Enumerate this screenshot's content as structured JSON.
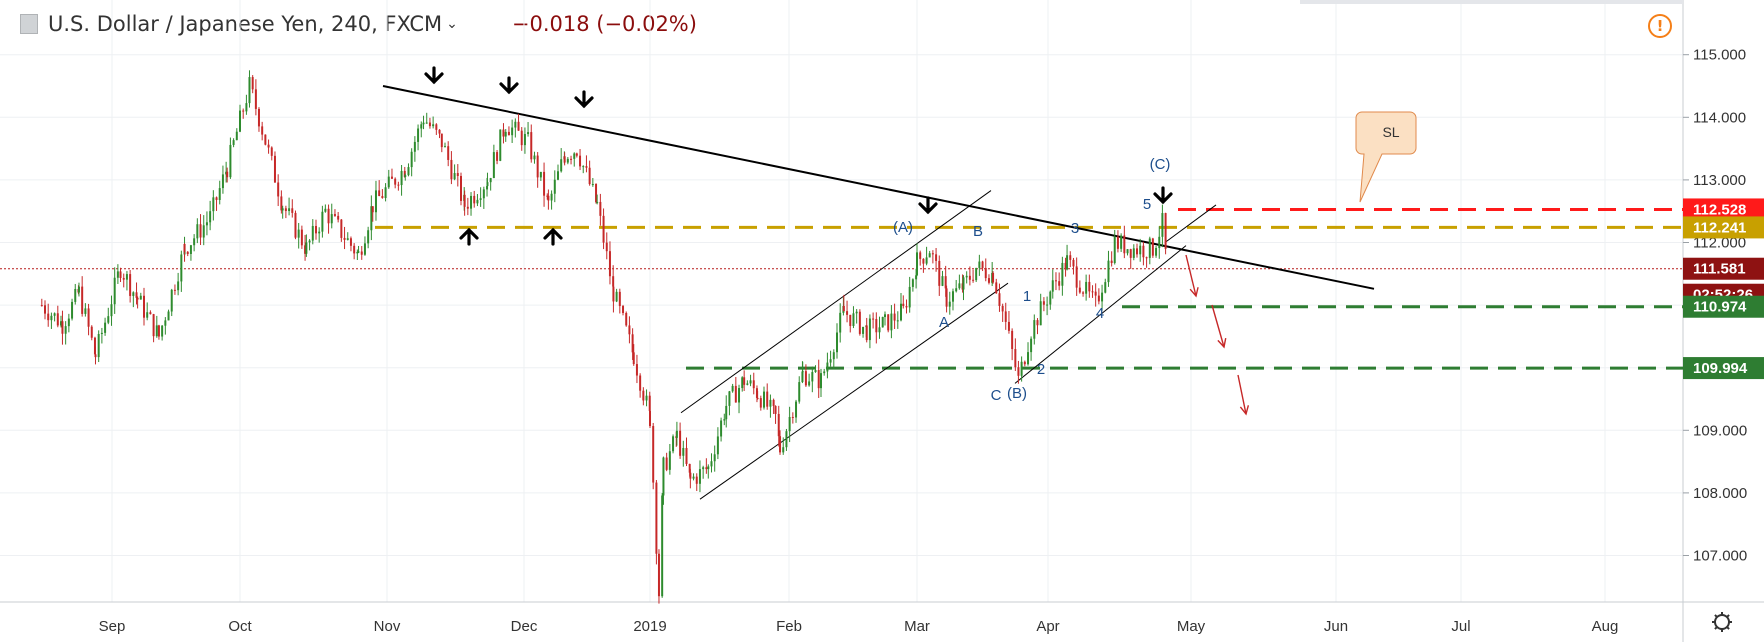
{
  "header": {
    "title": "U.S. Dollar / Japanese Yen, 240, FXCM",
    "change": "−0.018 (−0.02%)"
  },
  "icons": {
    "symbol": "symbol-icon",
    "dropdown": "chevron-down-icon",
    "alert": "warning-icon",
    "settings": "gear-icon"
  },
  "colors": {
    "up": "#2e8b2e",
    "down": "#c62828",
    "trend": "#000000",
    "resistance": "#c8a000",
    "stop": "#ff1a1a",
    "target": "#2e7d32"
  },
  "chart_data": {
    "type": "candlestick",
    "title": "U.S. Dollar / Japanese Yen, 240, FXCM",
    "x_labels": [
      "Sep",
      "Oct",
      "Nov",
      "Dec",
      "2019",
      "Feb",
      "Mar",
      "Apr",
      "May",
      "Jun",
      "Jul",
      "Aug"
    ],
    "y_ticks": [
      "115.000",
      "114.000",
      "113.000",
      "112.000",
      "109.000",
      "108.000",
      "107.000"
    ],
    "ylim": [
      106.2,
      115.6
    ],
    "close_path": [
      {
        "x": "Aug 15",
        "y": 111.0
      },
      {
        "x": "Aug 20",
        "y": 110.7
      },
      {
        "x": "Aug 24",
        "y": 111.2
      },
      {
        "x": "Aug 28",
        "y": 110.2
      },
      {
        "x": "Sep 3",
        "y": 111.6
      },
      {
        "x": "Sep 7",
        "y": 111.1
      },
      {
        "x": "Sep 12",
        "y": 110.5
      },
      {
        "x": "Sep 18",
        "y": 111.9
      },
      {
        "x": "Sep 24",
        "y": 112.4
      },
      {
        "x": "Sep 28",
        "y": 113.2
      },
      {
        "x": "Oct 3",
        "y": 114.5
      },
      {
        "x": "Oct 5",
        "y": 114.0
      },
      {
        "x": "Oct 10",
        "y": 112.6
      },
      {
        "x": "Oct 15",
        "y": 111.9
      },
      {
        "x": "Oct 19",
        "y": 112.5
      },
      {
        "x": "Oct 26",
        "y": 111.8
      },
      {
        "x": "Oct 29",
        "y": 112.6
      },
      {
        "x": "Nov 5",
        "y": 113.2
      },
      {
        "x": "Nov 9",
        "y": 114.0
      },
      {
        "x": "Nov 13",
        "y": 113.6
      },
      {
        "x": "Nov 18",
        "y": 112.6
      },
      {
        "x": "Nov 23",
        "y": 113.0
      },
      {
        "x": "Nov 27",
        "y": 113.9
      },
      {
        "x": "Dec 2",
        "y": 113.6
      },
      {
        "x": "Dec 7",
        "y": 112.6
      },
      {
        "x": "Dec 11",
        "y": 113.4
      },
      {
        "x": "Dec 14",
        "y": 113.5
      },
      {
        "x": "Dec 19",
        "y": 112.6
      },
      {
        "x": "Dec 23",
        "y": 111.2
      },
      {
        "x": "Dec 28",
        "y": 110.2
      },
      {
        "x": "Jan 1",
        "y": 109.2
      },
      {
        "x": "Jan 3",
        "y": 106.4
      },
      {
        "x": "Jan 4",
        "y": 108.4
      },
      {
        "x": "Jan 7",
        "y": 108.9
      },
      {
        "x": "Jan 10",
        "y": 108.2
      },
      {
        "x": "Jan 14",
        "y": 108.4
      },
      {
        "x": "Jan 18",
        "y": 109.4
      },
      {
        "x": "Jan 22",
        "y": 109.8
      },
      {
        "x": "Jan 25",
        "y": 109.6
      },
      {
        "x": "Jan 29",
        "y": 109.2
      },
      {
        "x": "Jan 30",
        "y": 108.7
      },
      {
        "x": "Feb 4",
        "y": 109.9
      },
      {
        "x": "Feb 8",
        "y": 109.8
      },
      {
        "x": "Feb 13",
        "y": 110.9
      },
      {
        "x": "Feb 18",
        "y": 110.6
      },
      {
        "x": "Feb 22",
        "y": 110.7
      },
      {
        "x": "Feb 26",
        "y": 110.9
      },
      {
        "x": "Mar 1",
        "y": 111.7
      },
      {
        "x": "Mar 4",
        "y": 111.9
      },
      {
        "x": "Mar 8",
        "y": 111.1
      },
      {
        "x": "Mar 12",
        "y": 111.3
      },
      {
        "x": "Mar 15",
        "y": 111.6
      },
      {
        "x": "Mar 19",
        "y": 111.5
      },
      {
        "x": "Mar 22",
        "y": 110.7
      },
      {
        "x": "Mar 25",
        "y": 109.8
      },
      {
        "x": "Mar 28",
        "y": 110.6
      },
      {
        "x": "Apr 2",
        "y": 111.3
      },
      {
        "x": "Apr 5",
        "y": 111.7
      },
      {
        "x": "Apr 9",
        "y": 111.2
      },
      {
        "x": "Apr 11",
        "y": 111.0
      },
      {
        "x": "Apr 15",
        "y": 112.0
      },
      {
        "x": "Apr 19",
        "y": 111.9
      },
      {
        "x": "Apr 23",
        "y": 111.9
      },
      {
        "x": "Apr 25",
        "y": 112.3
      },
      {
        "x": "Apr 26",
        "y": 111.6
      }
    ],
    "levels": [
      {
        "label": "112.528",
        "value": 112.528,
        "color": "#ff1a1a"
      },
      {
        "label": "112.241",
        "value": 112.241,
        "color": "#c8a000"
      },
      {
        "label": "111.581",
        "value": 111.581,
        "color": "#a11515"
      },
      {
        "label": "110.974",
        "value": 110.974,
        "color": "#2e7d32"
      },
      {
        "label": "109.994",
        "value": 109.994,
        "color": "#2e7d32"
      }
    ],
    "countdown": "02:52:26",
    "stop_label": "SL",
    "wave_labels": [
      "(A)",
      "B",
      "A",
      "C",
      "(B)",
      "1",
      "2",
      "3",
      "4",
      "5",
      "(C)"
    ]
  }
}
